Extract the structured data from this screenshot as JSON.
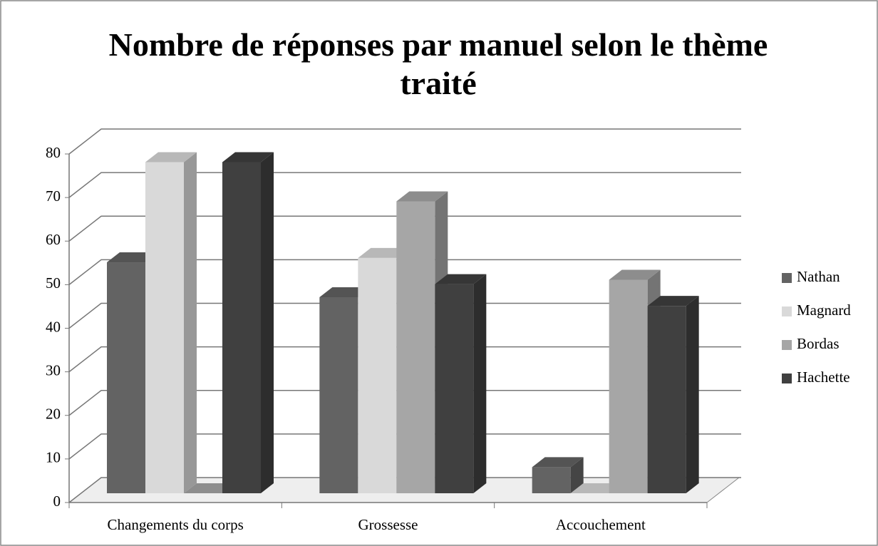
{
  "chart_data": {
    "type": "bar3d",
    "title": "Nombre de réponses par manuel selon le thème traité",
    "categories": [
      "Changements du corps",
      "Grossesse",
      "Accouchement"
    ],
    "series": [
      {
        "name": "Nathan",
        "color": "#636363",
        "values": [
          53,
          45,
          6
        ]
      },
      {
        "name": "Magnard",
        "color": "#d9d9d9",
        "values": [
          76,
          54,
          0
        ]
      },
      {
        "name": "Bordas",
        "color": "#a6a6a6",
        "values": [
          0,
          67,
          49
        ]
      },
      {
        "name": "Hachette",
        "color": "#404040",
        "values": [
          76,
          48,
          43
        ]
      }
    ],
    "ylim": [
      0,
      80
    ],
    "yticks": [
      0,
      10,
      20,
      30,
      40,
      50,
      60,
      70,
      80
    ],
    "grid": true,
    "legend": "right"
  }
}
